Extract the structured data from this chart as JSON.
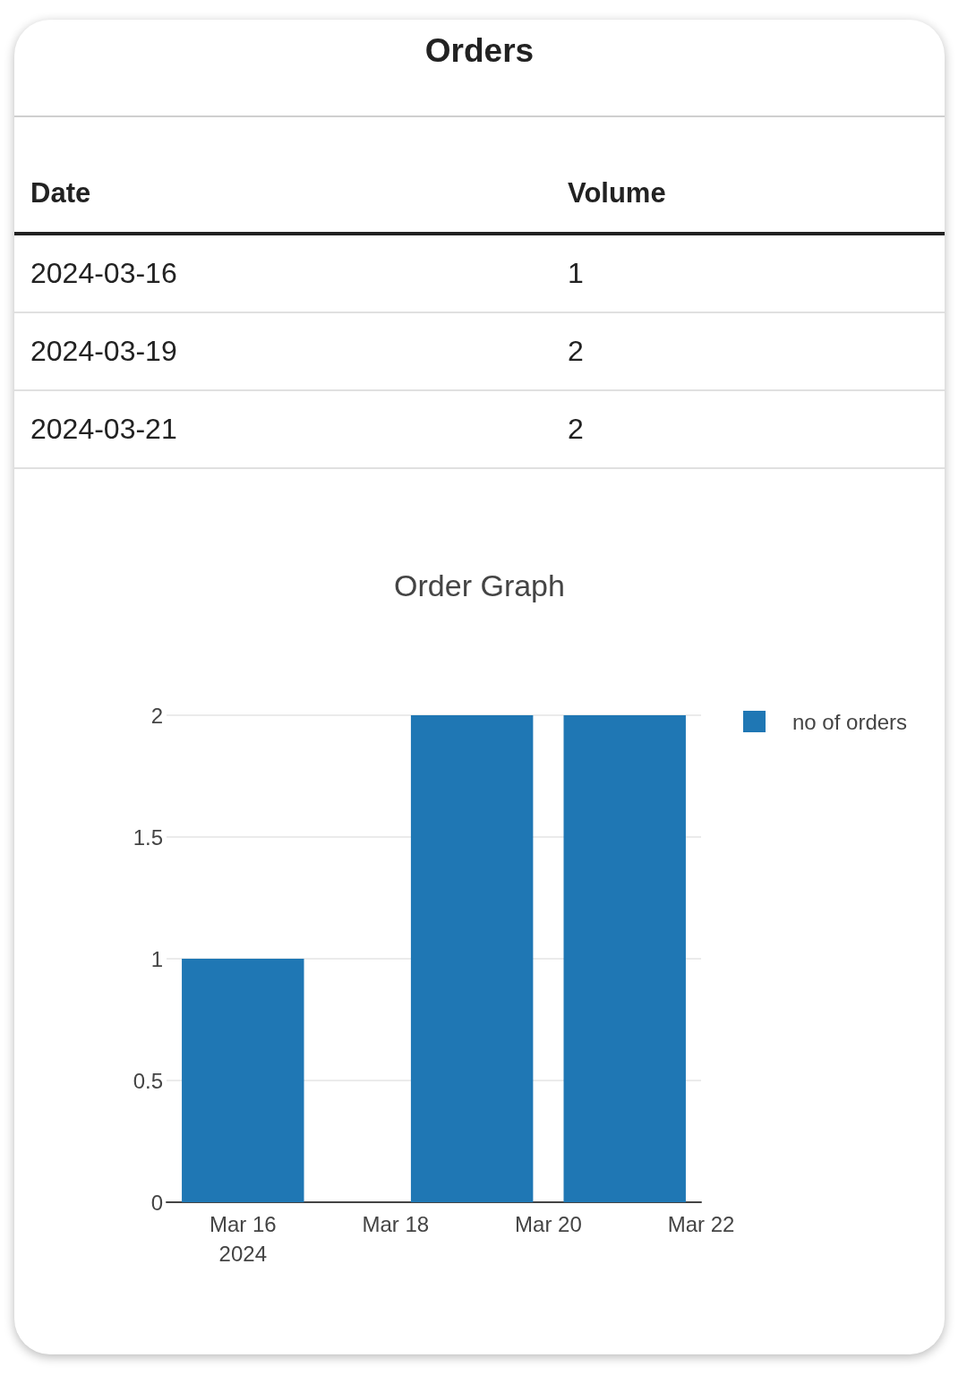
{
  "chart_data": [
    {
      "type": "other",
      "title": "Orders",
      "annotations": [
        "Date",
        "Volume",
        "2024-03-16",
        "1",
        "2024-03-19",
        "2",
        "2024-03-21",
        "2"
      ]
    },
    {
      "type": "bar",
      "title": "Order Graph",
      "x": [
        "2024-03-16",
        "2024-03-19",
        "2024-03-21"
      ],
      "series": [
        {
          "name": "no of orders",
          "color": "#1f77b4",
          "values": [
            1,
            2,
            2
          ]
        }
      ],
      "xlim": [
        "2024-03-15",
        "2024-03-22"
      ],
      "xticks": [
        {
          "value": "2024-03-16",
          "label": "Mar 16\n2024"
        },
        {
          "value": "2024-03-18",
          "label": "Mar 18"
        },
        {
          "value": "2024-03-20",
          "label": "Mar 20"
        },
        {
          "value": "2024-03-22",
          "label": "Mar 22"
        }
      ],
      "ylim": [
        0,
        2
      ],
      "yticks": [
        0,
        0.5,
        1,
        1.5,
        2
      ],
      "grid": "y",
      "legend": "top right"
    }
  ]
}
